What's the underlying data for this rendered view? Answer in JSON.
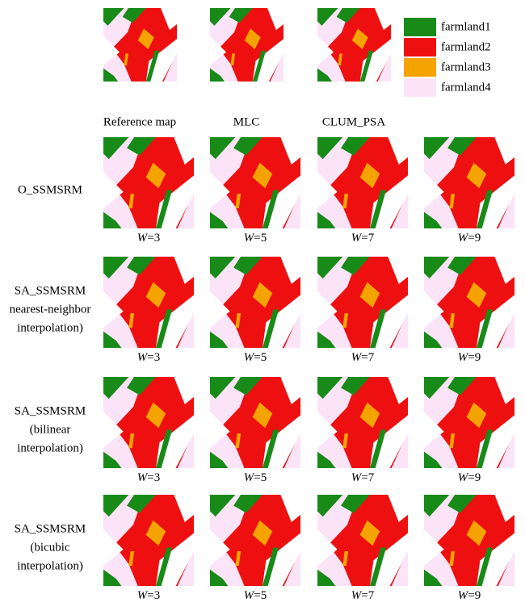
{
  "legend": [
    {
      "label": "farmland1",
      "color": "#188a18"
    },
    {
      "label": "farmland2",
      "color": "#ee1010"
    },
    {
      "label": "farmland3",
      "color": "#f5a300"
    },
    {
      "label": "farmland4",
      "color": "#fbe4f7"
    }
  ],
  "top_row": {
    "labels": [
      "Reference map",
      "MLC",
      "CLUM_PSA"
    ]
  },
  "rows": [
    {
      "label": [
        "O_SSMSRM"
      ],
      "columns": [
        {
          "italic": "W",
          "rest": "=3"
        },
        {
          "italic": "W",
          "rest": "=5"
        },
        {
          "italic": "W",
          "rest": "=7"
        },
        {
          "italic": "W",
          "rest": "=9"
        }
      ]
    },
    {
      "label": [
        "SA_SSMSRM",
        "nearest-neighbor",
        "interpolation)"
      ],
      "columns": [
        {
          "italic": "W",
          "rest": "=3"
        },
        {
          "italic": "W",
          "rest": "=5"
        },
        {
          "italic": "W",
          "rest": "=7"
        },
        {
          "italic": "W",
          "rest": "=9"
        }
      ]
    },
    {
      "label": [
        "SA_SSMSRM",
        "(bilinear",
        "interpolation)"
      ],
      "columns": [
        {
          "italic": "W",
          "rest": "=3"
        },
        {
          "italic": "W",
          "rest": "=5"
        },
        {
          "italic": "W",
          "rest": "=7"
        },
        {
          "italic": "W",
          "rest": "=9"
        }
      ]
    },
    {
      "label": [
        "SA_SSMSRM",
        "(bicubic",
        "interpolation)"
      ],
      "columns": [
        {
          "italic": "W",
          "rest": "=3"
        },
        {
          "italic": "W",
          "rest": "=5"
        },
        {
          "italic": "W",
          "rest": "=7"
        },
        {
          "italic": "W",
          "rest": "=9"
        }
      ]
    }
  ]
}
